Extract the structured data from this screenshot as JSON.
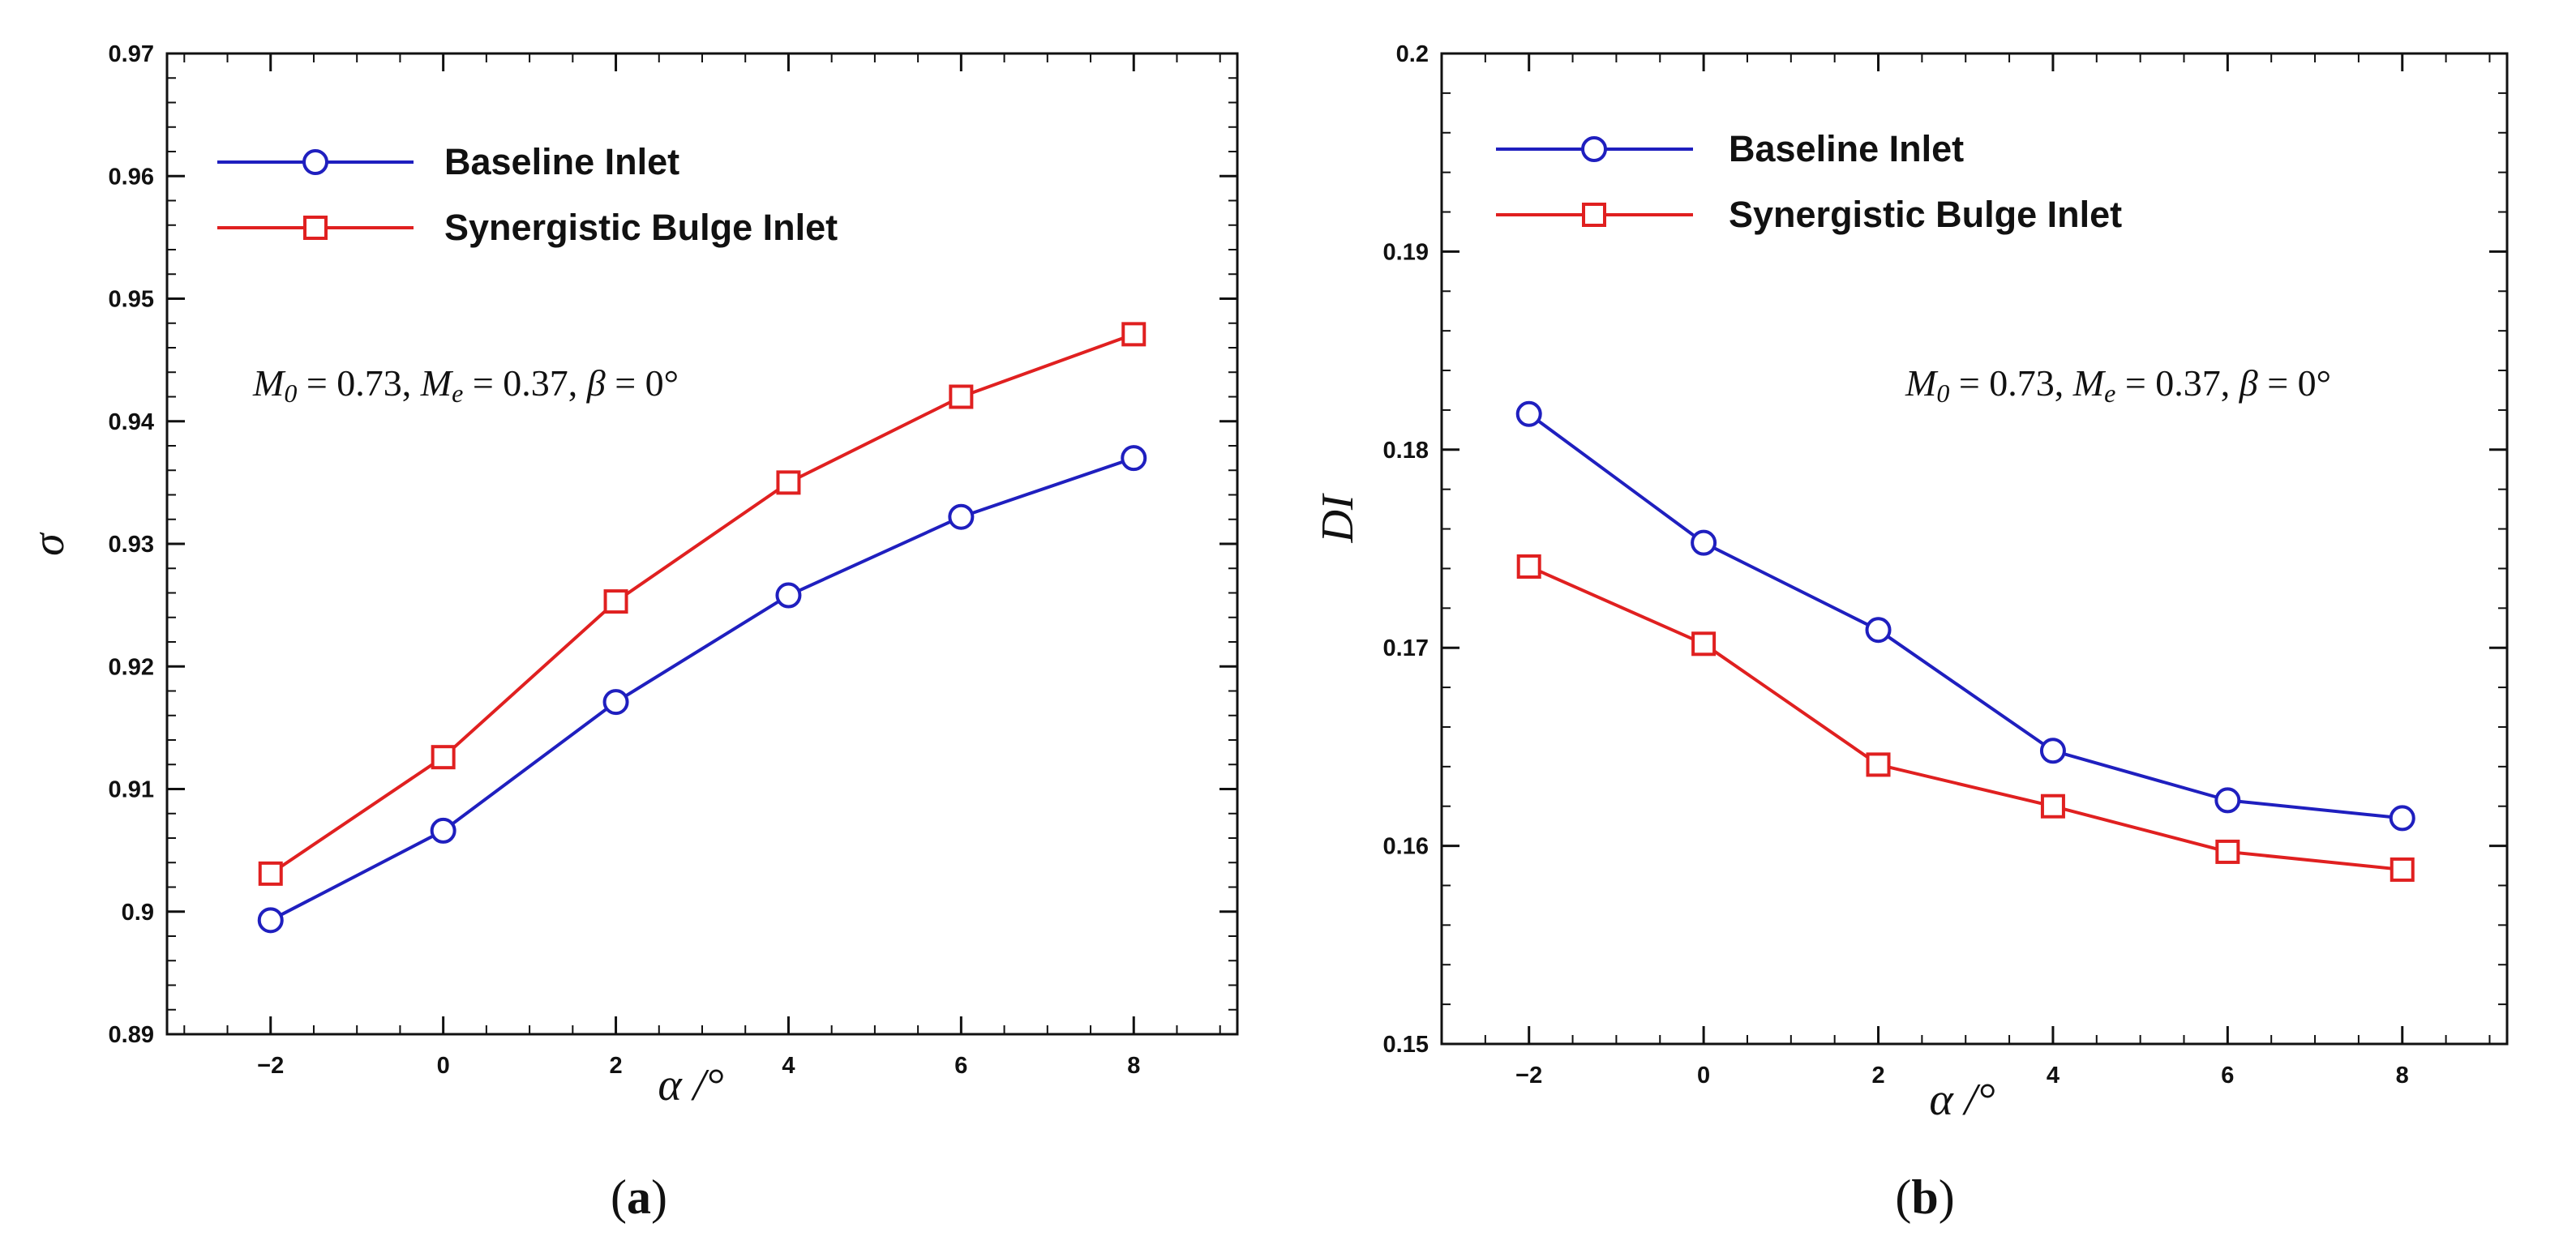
{
  "chart_data": [
    {
      "type": "line",
      "panel_label": "a",
      "xlabel": "α /°",
      "ylabel": "σ",
      "xlim": [
        -3.2,
        9.2
      ],
      "ylim": [
        0.89,
        0.97
      ],
      "x_ticks": [
        -2,
        0,
        2,
        4,
        6,
        8
      ],
      "x_tick_labels": [
        "−2",
        "0",
        "2",
        "4",
        "6",
        "8"
      ],
      "y_ticks": [
        0.89,
        0.9,
        0.91,
        0.92,
        0.93,
        0.94,
        0.95,
        0.96,
        0.97
      ],
      "y_tick_labels": [
        "0.89",
        "0.9",
        "0.91",
        "0.92",
        "0.93",
        "0.94",
        "0.95",
        "0.96",
        "0.97"
      ],
      "x": [
        -2,
        0,
        2,
        4,
        6,
        8
      ],
      "series": [
        {
          "name": "Baseline Inlet",
          "color": "#1f1fbf",
          "marker": "circle",
          "values": [
            0.8993,
            0.9066,
            0.9171,
            0.9258,
            0.9322,
            0.937
          ]
        },
        {
          "name": "Synergistic Bulge Inlet",
          "color": "#e02020",
          "marker": "square",
          "values": [
            0.9031,
            0.9126,
            0.9253,
            0.935,
            0.942,
            0.9471
          ]
        }
      ],
      "annotation": {
        "m0": "0.73",
        "me": "0.37",
        "beta": "0°"
      },
      "legend": "top-left",
      "grid": false
    },
    {
      "type": "line",
      "panel_label": "b",
      "xlabel": "α /°",
      "ylabel": "DI",
      "xlim": [
        -3.0,
        9.2
      ],
      "ylim": [
        0.15,
        0.2
      ],
      "x_ticks": [
        -2,
        0,
        2,
        4,
        6,
        8
      ],
      "x_tick_labels": [
        "−2",
        "0",
        "2",
        "4",
        "6",
        "8"
      ],
      "y_ticks": [
        0.15,
        0.16,
        0.17,
        0.18,
        0.19,
        0.2
      ],
      "y_tick_labels": [
        "0.15",
        "0.16",
        "0.17",
        "0.18",
        "0.19",
        "0.2"
      ],
      "x": [
        -2,
        0,
        2,
        4,
        6,
        8
      ],
      "series": [
        {
          "name": "Baseline Inlet",
          "color": "#1f1fbf",
          "marker": "circle",
          "values": [
            0.1818,
            0.1753,
            0.1709,
            0.1648,
            0.1623,
            0.1614
          ]
        },
        {
          "name": "Synergistic Bulge Inlet",
          "color": "#e02020",
          "marker": "square",
          "values": [
            0.1741,
            0.1702,
            0.1641,
            0.162,
            0.1597,
            0.1588
          ]
        }
      ],
      "annotation": {
        "m0": "0.73",
        "me": "0.37",
        "beta": "0°"
      },
      "legend": "top-left",
      "grid": false
    }
  ]
}
